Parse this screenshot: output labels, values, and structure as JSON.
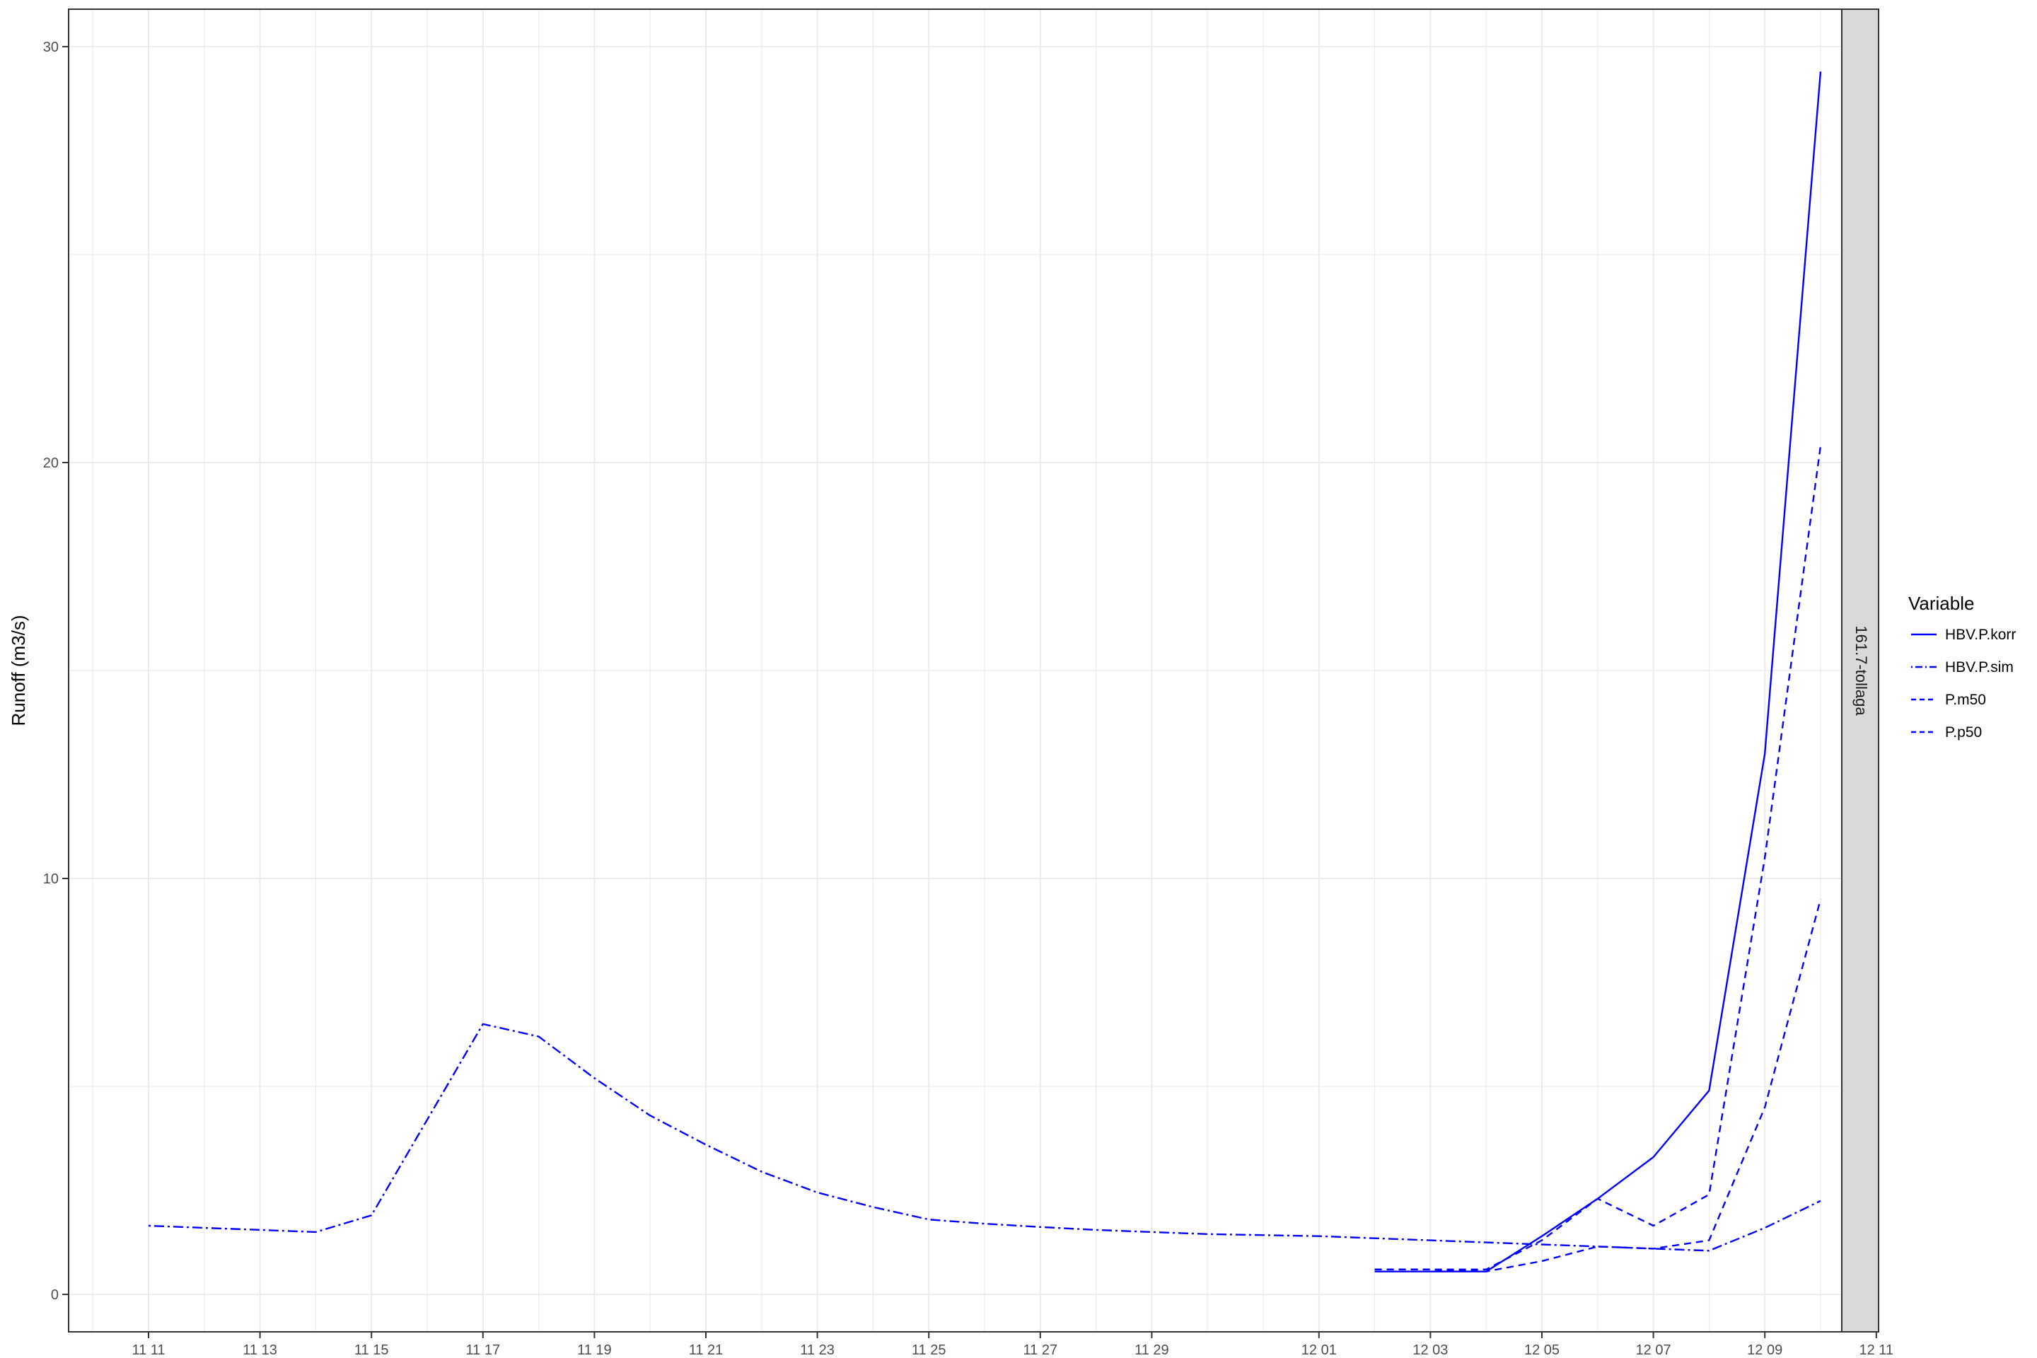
{
  "chart_data": {
    "type": "line",
    "title": "",
    "xlabel": "",
    "ylabel": "Runoff (m3/s)",
    "facet_label": "161.7-tollaga",
    "x_tick_labels": [
      "11 11",
      "11 13",
      "11 15",
      "11 17",
      "11 19",
      "11 21",
      "11 23",
      "11 25",
      "11 27",
      "11 29",
      "12 01",
      "12 03",
      "12 05",
      "12 07",
      "12 09",
      "12 11"
    ],
    "y_tick_labels": [
      "0",
      "10",
      "20",
      "30"
    ],
    "ylim": [
      -0.9,
      30.9
    ],
    "grid": true,
    "legend": {
      "title": "Variable",
      "position": "right"
    },
    "colors": {
      "series": "#0000ff",
      "panel_border": "#333333",
      "grid": "#ebebeb",
      "strip_fill": "#d9d9d9"
    },
    "series": [
      {
        "name": "HBV.P.korr",
        "linetype": "solid",
        "x": [
          "12 02",
          "12 03",
          "12 04",
          "12 05",
          "12 06",
          "12 07",
          "12 08",
          "12 09",
          "12 10"
        ],
        "values": [
          0.55,
          0.55,
          0.55,
          1.4,
          2.3,
          3.3,
          4.9,
          13.0,
          29.4
        ]
      },
      {
        "name": "HBV.P.sim",
        "linetype": "dotdash",
        "x": [
          "11 11",
          "11 12",
          "11 13",
          "11 14",
          "11 15",
          "11 16",
          "11 17",
          "11 18",
          "11 19",
          "11 20",
          "11 21",
          "11 22",
          "11 23",
          "11 24",
          "11 25",
          "11 26",
          "11 27",
          "11 28",
          "11 29",
          "11 30",
          "12 01",
          "12 02",
          "12 03",
          "12 04",
          "12 05",
          "12 06",
          "12 07",
          "12 08",
          "12 09",
          "12 10"
        ],
        "values": [
          1.65,
          1.6,
          1.55,
          1.5,
          1.9,
          4.2,
          6.5,
          6.2,
          5.2,
          4.3,
          3.6,
          2.95,
          2.45,
          2.1,
          1.8,
          1.7,
          1.62,
          1.55,
          1.5,
          1.45,
          1.4,
          1.35,
          1.3,
          1.25,
          1.2,
          1.15,
          1.1,
          1.05,
          1.6,
          2.25
        ]
      },
      {
        "name": "P.m50",
        "linetype": "dashed",
        "x": [
          "12 02",
          "12 03",
          "12 04",
          "12 05",
          "12 06",
          "12 07",
          "12 08",
          "12 09",
          "12 10"
        ],
        "values": [
          0.6,
          0.6,
          0.6,
          1.3,
          2.3,
          1.65,
          2.4,
          10.5,
          20.4
        ]
      },
      {
        "name": "P.p50",
        "linetype": "dashed",
        "x": [
          "12 02",
          "12 03",
          "12 04",
          "12 05",
          "12 06",
          "12 07",
          "12 08",
          "12 09",
          "12 10"
        ],
        "values": [
          0.6,
          0.6,
          0.55,
          0.8,
          1.15,
          1.1,
          1.3,
          4.5,
          9.5
        ]
      }
    ]
  }
}
